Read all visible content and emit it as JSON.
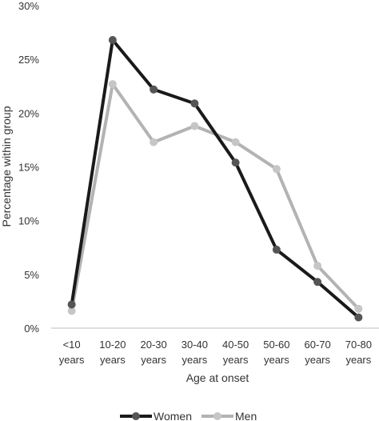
{
  "chart_data": {
    "type": "line",
    "categories": [
      "<10 years",
      "10-20 years",
      "20-30 years",
      "30-40 years",
      "40-50 years",
      "50-60 years",
      "60-70 years",
      "70-80 years"
    ],
    "category_lines": [
      [
        "<10",
        "years"
      ],
      [
        "10-20",
        "years"
      ],
      [
        "20-30",
        "years"
      ],
      [
        "30-40",
        "years"
      ],
      [
        "40-50",
        "years"
      ],
      [
        "50-60",
        "years"
      ],
      [
        "60-70",
        "years"
      ],
      [
        "70-80",
        "years"
      ]
    ],
    "series": [
      {
        "name": "Women",
        "color": "#1a1a1a",
        "values": [
          2.2,
          26.8,
          22.2,
          20.9,
          15.4,
          7.3,
          4.3,
          1.0
        ]
      },
      {
        "name": "Men",
        "color": "#b3b3b3",
        "values": [
          1.6,
          22.7,
          17.3,
          18.8,
          17.3,
          14.8,
          5.8,
          1.8
        ]
      }
    ],
    "xlabel": "Age at onset",
    "ylabel": "Percentage within group",
    "ylim": [
      0,
      30
    ],
    "yticks": [
      "0%",
      "5%",
      "10%",
      "15%",
      "20%",
      "25%",
      "30%"
    ],
    "grid": false,
    "legend_position": "bottom"
  }
}
